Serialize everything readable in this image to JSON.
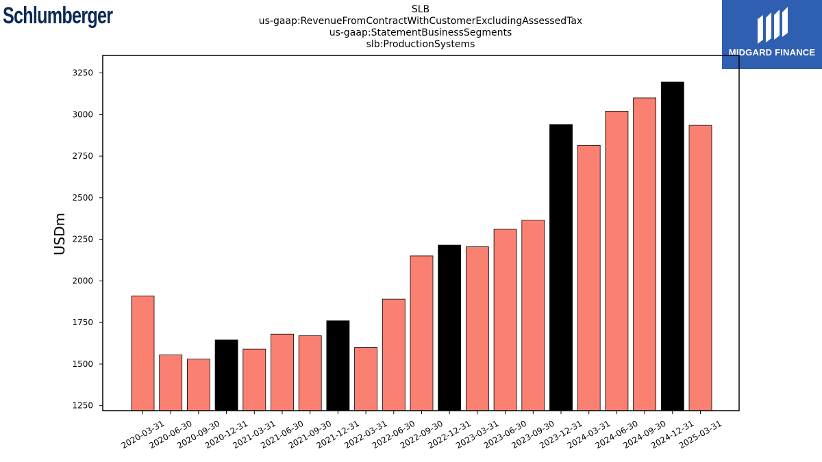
{
  "logos": {
    "left_text": "Schlumberger",
    "right_text": "MIDGARD FINANCE",
    "right_color": "#2f5fb0"
  },
  "chart_data": {
    "type": "bar",
    "title_lines": [
      "SLB",
      "us-gaap:RevenueFromContractWithCustomerExcludingAssessedTax",
      "us-gaap:StatementBusinessSegments",
      "slb:ProductionSystems"
    ],
    "ylabel": "USDm",
    "xlabel": "",
    "ylim": [
      1220,
      3355
    ],
    "yticks": [
      1250,
      1500,
      1750,
      2000,
      2250,
      2500,
      2750,
      3000,
      3250
    ],
    "grid": false,
    "categories": [
      "2020-03-31",
      "2020-06-30",
      "2020-09-30",
      "2020-12-31",
      "2021-03-31",
      "2021-06-30",
      "2021-09-30",
      "2021-12-31",
      "2022-03-31",
      "2022-06-30",
      "2022-09-30",
      "2022-12-31",
      "2023-03-31",
      "2023-06-30",
      "2023-09-30",
      "2023-12-31",
      "2024-03-31",
      "2024-06-30",
      "2024-09-30",
      "2024-12-31",
      "2025-03-31"
    ],
    "values": [
      1910,
      1555,
      1530,
      1645,
      1590,
      1680,
      1670,
      1760,
      1600,
      1890,
      2150,
      2215,
      2205,
      2310,
      2365,
      2940,
      2815,
      3020,
      3100,
      3195,
      2935
    ],
    "quarter_color": "#fa8072",
    "year_end_color": "#000000",
    "highlighted": [
      "2020-12-31",
      "2021-12-31",
      "2022-12-31",
      "2023-12-31",
      "2024-12-31"
    ]
  }
}
